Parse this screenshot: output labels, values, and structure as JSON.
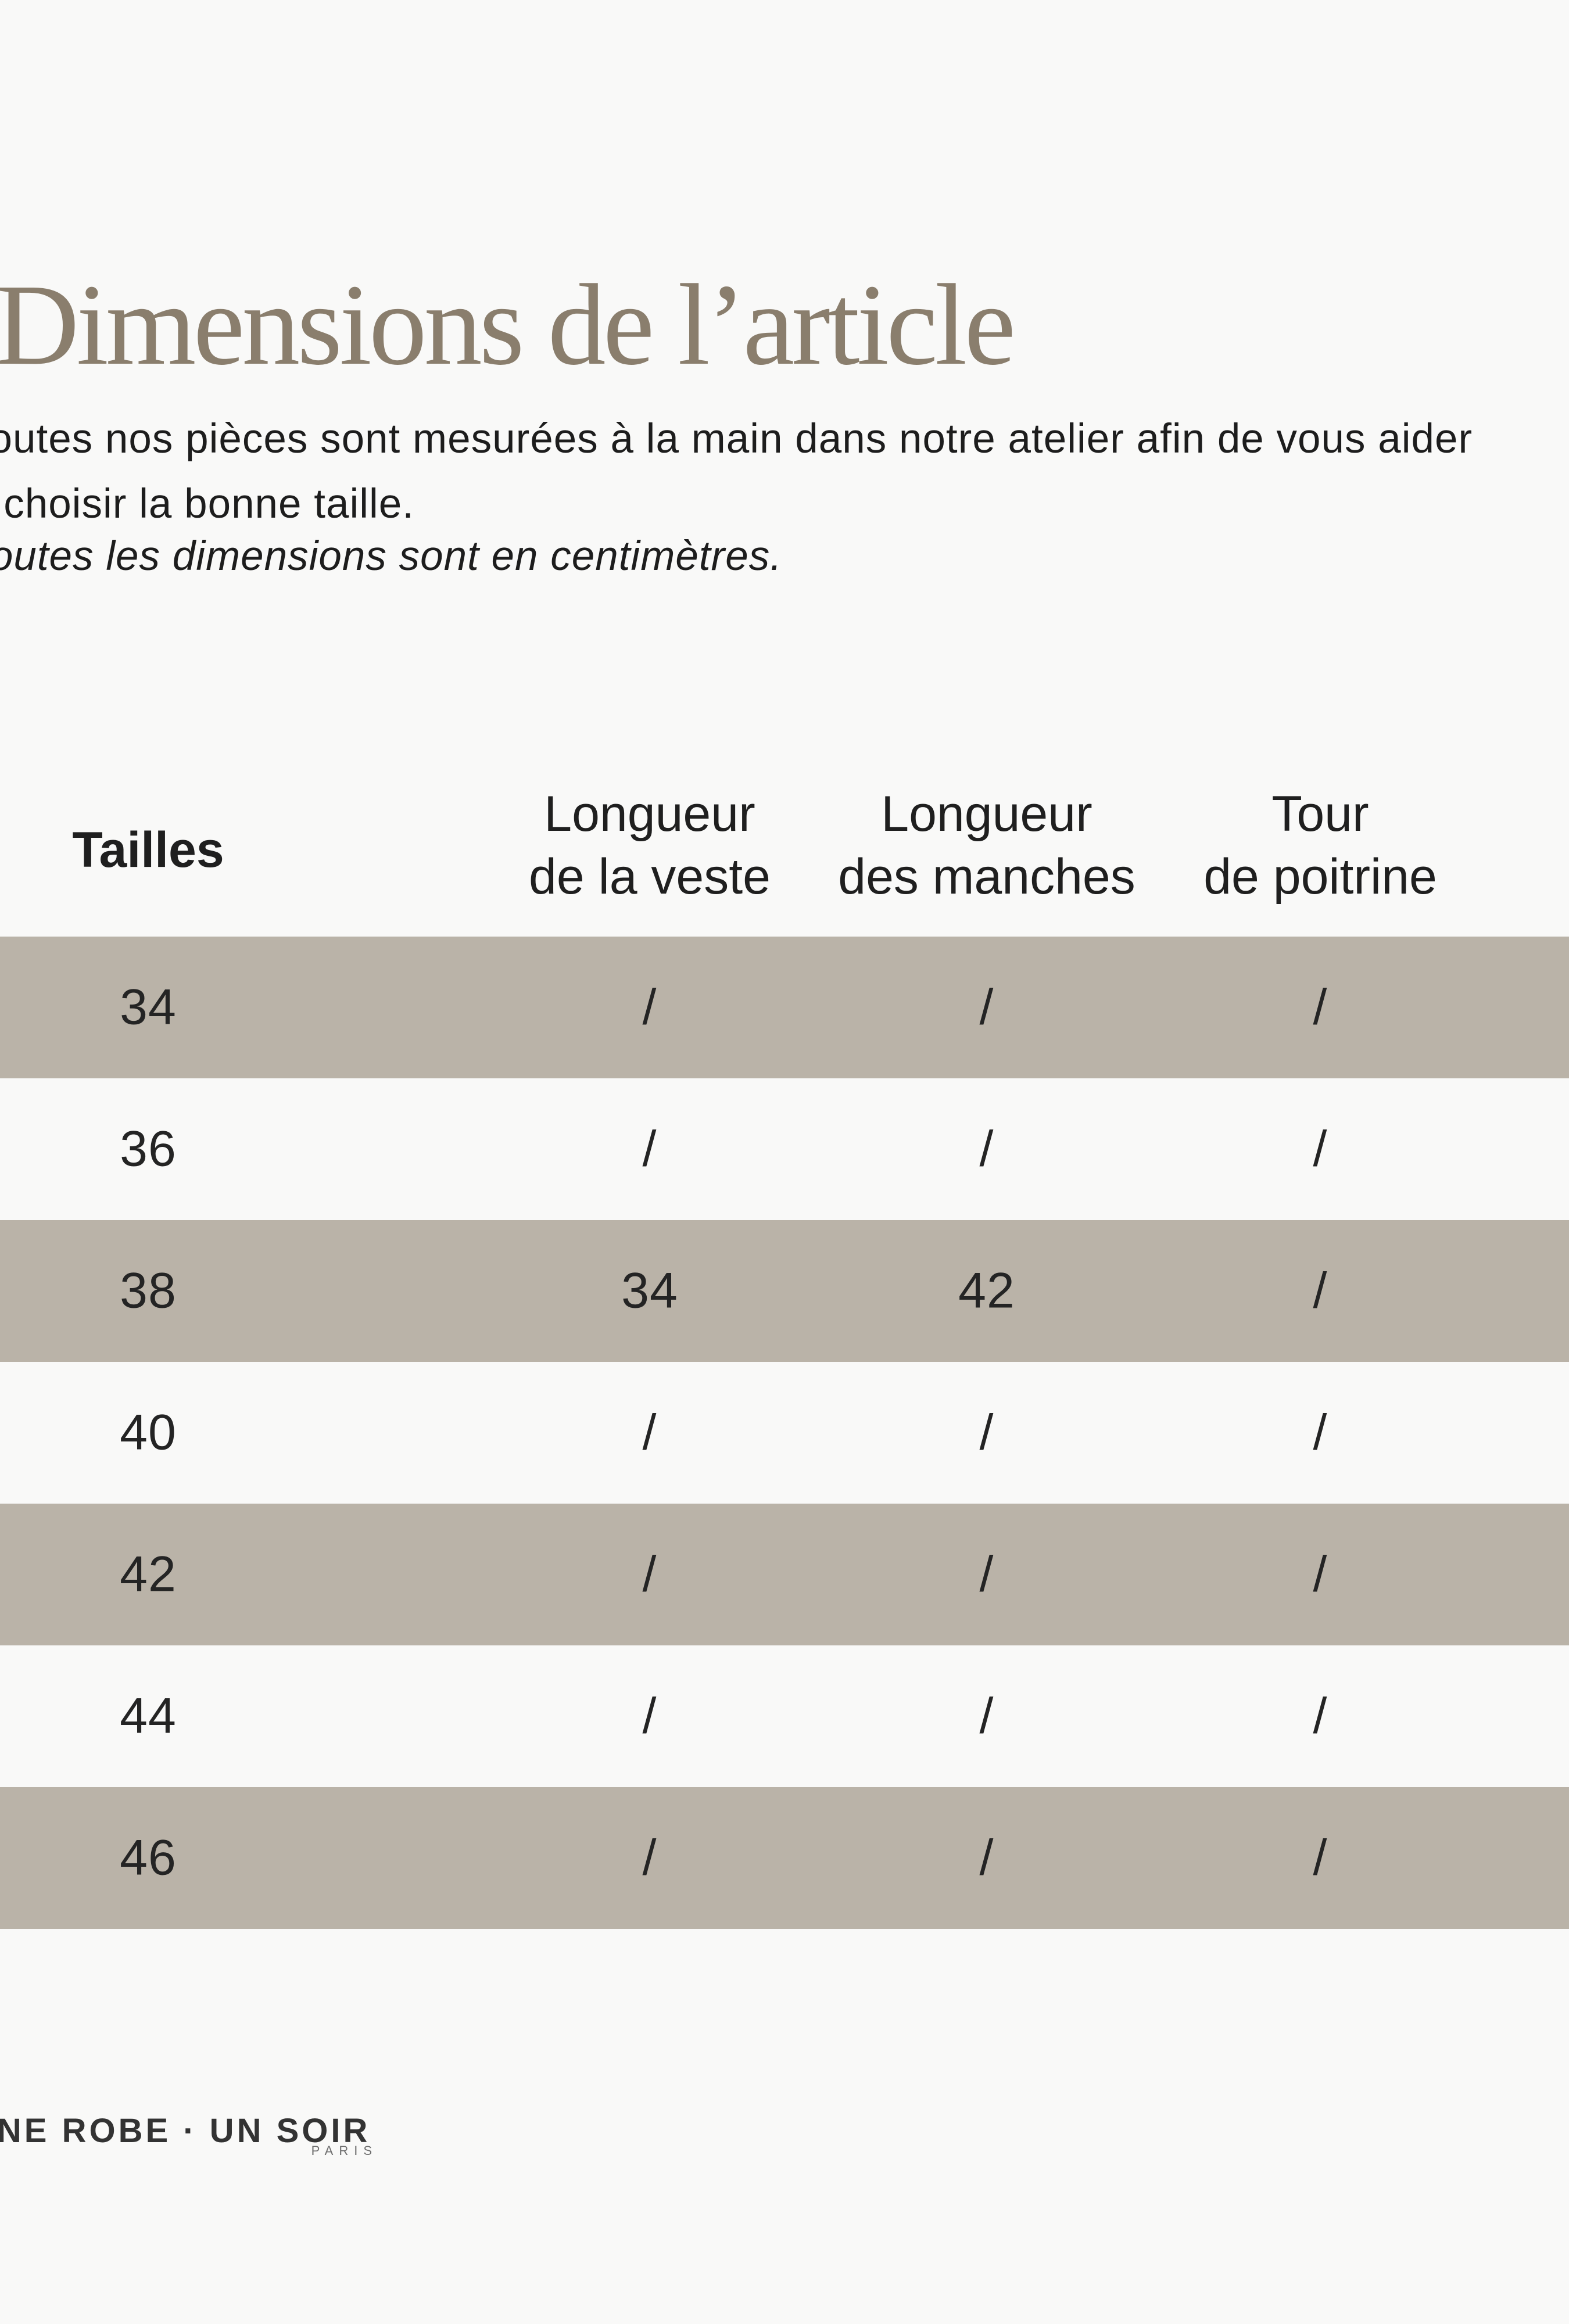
{
  "colors": {
    "bg": "#f9f9f8",
    "shade": "#bab3a8",
    "title": "#8a7e6d",
    "text": "#1d1d1d",
    "brand": "#333333",
    "brand_sub": "#6f6f6f"
  },
  "title": {
    "text": "Dimensions de l’article"
  },
  "intro": {
    "lines": [
      "Toutes nos pièces sont mesurées à la main dans notre atelier afin de vous aider",
      "à choisir la bonne taille."
    ],
    "note": "Toutes les dimensions sont en centimètres."
  },
  "table": {
    "header": {
      "sizes_label": "Tailles",
      "columns": [
        {
          "lines": [
            "Longueur",
            "de la veste"
          ]
        },
        {
          "lines": [
            "Longueur",
            "des manches"
          ]
        },
        {
          "lines": [
            "Tour",
            "de poitrine"
          ]
        }
      ]
    },
    "rows": [
      {
        "size": "34",
        "values": [
          "/",
          "/",
          "/"
        ]
      },
      {
        "size": "36",
        "values": [
          "/",
          "/",
          "/"
        ]
      },
      {
        "size": "38",
        "values": [
          "34",
          "42",
          "/"
        ]
      },
      {
        "size": "40",
        "values": [
          "/",
          "/",
          "/"
        ]
      },
      {
        "size": "42",
        "values": [
          "/",
          "/",
          "/"
        ]
      },
      {
        "size": "44",
        "values": [
          "/",
          "/",
          "/"
        ]
      },
      {
        "size": "46",
        "values": [
          "/",
          "/",
          "/"
        ]
      }
    ]
  },
  "footer": {
    "brand": "UNE ROBE · UN SOIR",
    "brand_sub": "PARIS"
  }
}
